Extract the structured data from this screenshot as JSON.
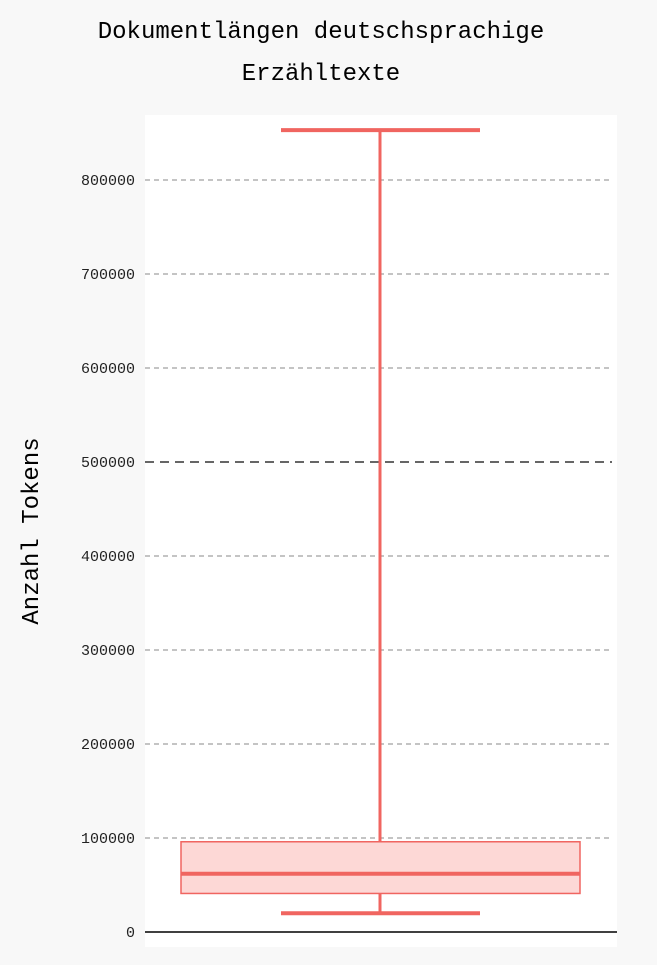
{
  "chart_data": {
    "type": "boxplot",
    "title_lines": [
      "Dokumentlängen deutschsprachige",
      "Erzähltexte"
    ],
    "ylabel": "Anzahl Tokens",
    "xlabel": "",
    "ylim": [
      0,
      850000
    ],
    "yticks": [
      0,
      100000,
      200000,
      300000,
      400000,
      500000,
      600000,
      700000,
      800000
    ],
    "ytick_labels": [
      "0",
      "100000",
      "200000",
      "300000",
      "400000",
      "500000",
      "600000",
      "700000",
      "800000"
    ],
    "highlight_tick": 500000,
    "grid": true,
    "box": {
      "min": 20000,
      "q1": 41000,
      "median": 62000,
      "q3": 96000,
      "max": 853000
    },
    "colors": {
      "box_stroke": "#f06560",
      "box_fill": "#fdd8d6",
      "grid": "#888888",
      "highlight_grid": "#333333",
      "plot_bg": "#ffffff",
      "page_bg": "#f8f8f8"
    }
  }
}
